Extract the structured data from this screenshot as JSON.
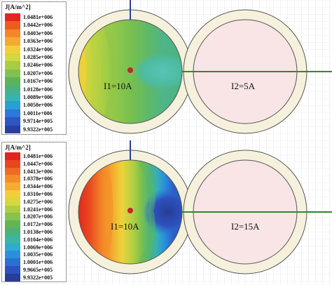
{
  "panels": [
    {
      "legend": {
        "title": "J[A/m^2]",
        "entries": [
          {
            "label": "1.0481e+006",
            "color": "#e2251e"
          },
          {
            "label": "1.0442e+006",
            "color": "#ee5b1f"
          },
          {
            "label": "1.0403e+006",
            "color": "#f3862a"
          },
          {
            "label": "1.0363e+006",
            "color": "#f6a92f"
          },
          {
            "label": "1.0324e+006",
            "color": "#f2cf3a"
          },
          {
            "label": "1.0285e+006",
            "color": "#d3d83c"
          },
          {
            "label": "1.0246e+006",
            "color": "#a9cc45"
          },
          {
            "label": "1.0207e+006",
            "color": "#82c14d"
          },
          {
            "label": "1.0167e+006",
            "color": "#5cb35b"
          },
          {
            "label": "1.0128e+006",
            "color": "#48b283"
          },
          {
            "label": "1.0089e+006",
            "color": "#36b4ad"
          },
          {
            "label": "1.0050e+006",
            "color": "#2a9fd6"
          },
          {
            "label": "1.0011e+006",
            "color": "#2b78d8"
          },
          {
            "label": "9.9714e+005",
            "color": "#2d55c4"
          },
          {
            "label": "9.9322e+005",
            "color": "#293f9e"
          }
        ]
      },
      "conductor1_label": "I1=10A",
      "conductor2_label": "I2=5A"
    },
    {
      "legend": {
        "title": "J[A/m^2]",
        "entries": [
          {
            "label": "1.0481e+006",
            "color": "#e2251e"
          },
          {
            "label": "1.0447e+006",
            "color": "#e9451f"
          },
          {
            "label": "1.0413e+006",
            "color": "#ef6a22"
          },
          {
            "label": "1.0378e+006",
            "color": "#f48c29"
          },
          {
            "label": "1.0344e+006",
            "color": "#f7ac30"
          },
          {
            "label": "1.0310e+006",
            "color": "#f3cd3a"
          },
          {
            "label": "1.0275e+006",
            "color": "#d5d93c"
          },
          {
            "label": "1.0241e+006",
            "color": "#acce44"
          },
          {
            "label": "1.0207e+006",
            "color": "#86c24c"
          },
          {
            "label": "1.0172e+006",
            "color": "#62b556"
          },
          {
            "label": "1.0138e+006",
            "color": "#4bb27a"
          },
          {
            "label": "1.0104e+006",
            "color": "#3ab4a3"
          },
          {
            "label": "1.0069e+006",
            "color": "#2eaccd"
          },
          {
            "label": "1.0035e+006",
            "color": "#2a90dc"
          },
          {
            "label": "1.0001e+006",
            "color": "#2b6fd3"
          },
          {
            "label": "9.9665e+005",
            "color": "#2d52bd"
          },
          {
            "label": "9.9322e+005",
            "color": "#283c98"
          }
        ]
      },
      "conductor1_label": "I1=10A",
      "conductor2_label": "I2=15A"
    }
  ],
  "colors": {
    "background": "#ffffff",
    "grid": "#d9d9d9",
    "insulation_fill": "#f6f1dc",
    "conductor2_fill": "#f9e4e6",
    "conductor_stroke": "#555555",
    "vertical_lead": "#2c3fa0",
    "horizontal_lead": "#2f8a2a",
    "center_dot": "#c0272d"
  }
}
